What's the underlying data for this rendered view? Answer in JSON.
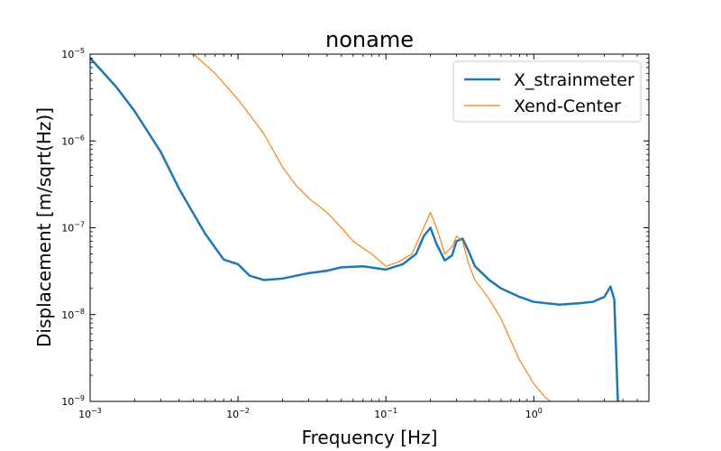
{
  "chart_data": {
    "type": "line",
    "title": "noname",
    "xlabel": "Frequency [Hz]",
    "ylabel": "Displacement [m/sqrt(Hz)]",
    "xscale": "log",
    "yscale": "log",
    "xlim": [
      0.001,
      6.0
    ],
    "ylim": [
      1e-09,
      1e-05
    ],
    "grid": false,
    "legend_position": "top-right",
    "x_ticks": [
      {
        "value": 0.001,
        "label": "10",
        "exp": "−3"
      },
      {
        "value": 0.01,
        "label": "10",
        "exp": "−2"
      },
      {
        "value": 0.1,
        "label": "10",
        "exp": "−1"
      },
      {
        "value": 1,
        "label": "10",
        "exp": "0"
      }
    ],
    "y_ticks": [
      {
        "value": 1e-09,
        "label": "10",
        "exp": "−9"
      },
      {
        "value": 1e-08,
        "label": "10",
        "exp": "−8"
      },
      {
        "value": 1e-07,
        "label": "10",
        "exp": "−7"
      },
      {
        "value": 1e-06,
        "label": "10",
        "exp": "−6"
      },
      {
        "value": 1e-05,
        "label": "10",
        "exp": "−5"
      }
    ],
    "series": [
      {
        "name": "X_strainmeter",
        "color": "#1f77b4",
        "line_width": 2.5,
        "points": [
          [
            0.001,
            9e-06
          ],
          [
            0.0015,
            4.2e-06
          ],
          [
            0.002,
            2.2e-06
          ],
          [
            0.003,
            7.5e-07
          ],
          [
            0.004,
            2.8e-07
          ],
          [
            0.006,
            8.5e-08
          ],
          [
            0.008,
            4.3e-08
          ],
          [
            0.01,
            3.8e-08
          ],
          [
            0.012,
            2.8e-08
          ],
          [
            0.015,
            2.5e-08
          ],
          [
            0.02,
            2.6e-08
          ],
          [
            0.03,
            3e-08
          ],
          [
            0.04,
            3.2e-08
          ],
          [
            0.05,
            3.5e-08
          ],
          [
            0.07,
            3.6e-08
          ],
          [
            0.1,
            3.3e-08
          ],
          [
            0.13,
            3.8e-08
          ],
          [
            0.16,
            5e-08
          ],
          [
            0.18,
            8e-08
          ],
          [
            0.2,
            1e-07
          ],
          [
            0.22,
            6.5e-08
          ],
          [
            0.25,
            4.2e-08
          ],
          [
            0.28,
            4.8e-08
          ],
          [
            0.3,
            7e-08
          ],
          [
            0.33,
            7.5e-08
          ],
          [
            0.36,
            5.5e-08
          ],
          [
            0.4,
            3.6e-08
          ],
          [
            0.5,
            2.5e-08
          ],
          [
            0.6,
            2e-08
          ],
          [
            0.8,
            1.6e-08
          ],
          [
            1.0,
            1.4e-08
          ],
          [
            1.5,
            1.3e-08
          ],
          [
            2.0,
            1.35e-08
          ],
          [
            2.5,
            1.4e-08
          ],
          [
            3.0,
            1.6e-08
          ],
          [
            3.3,
            2.1e-08
          ],
          [
            3.5,
            1.5e-08
          ],
          [
            3.7,
            1e-09
          ]
        ]
      },
      {
        "name": "Xend-Center",
        "color": "#ff7f0e",
        "line_width": 1.2,
        "points": [
          [
            0.005,
            1e-05
          ],
          [
            0.007,
            6e-06
          ],
          [
            0.01,
            3e-06
          ],
          [
            0.012,
            2e-06
          ],
          [
            0.015,
            1.2e-06
          ],
          [
            0.02,
            5e-07
          ],
          [
            0.025,
            3e-07
          ],
          [
            0.03,
            2.2e-07
          ],
          [
            0.04,
            1.5e-07
          ],
          [
            0.05,
            1e-07
          ],
          [
            0.06,
            7e-08
          ],
          [
            0.08,
            5e-08
          ],
          [
            0.1,
            3.6e-08
          ],
          [
            0.12,
            4e-08
          ],
          [
            0.15,
            5e-08
          ],
          [
            0.18,
            1e-07
          ],
          [
            0.2,
            1.5e-07
          ],
          [
            0.22,
            1e-07
          ],
          [
            0.25,
            5e-08
          ],
          [
            0.28,
            6e-08
          ],
          [
            0.3,
            8e-08
          ],
          [
            0.33,
            7e-08
          ],
          [
            0.36,
            4e-08
          ],
          [
            0.4,
            2.5e-08
          ],
          [
            0.5,
            1.5e-08
          ],
          [
            0.6,
            9e-09
          ],
          [
            0.7,
            5e-09
          ],
          [
            0.8,
            3e-09
          ],
          [
            1.0,
            1.6e-09
          ],
          [
            1.2,
            1.1e-09
          ],
          [
            1.3,
            1e-09
          ]
        ]
      }
    ]
  }
}
